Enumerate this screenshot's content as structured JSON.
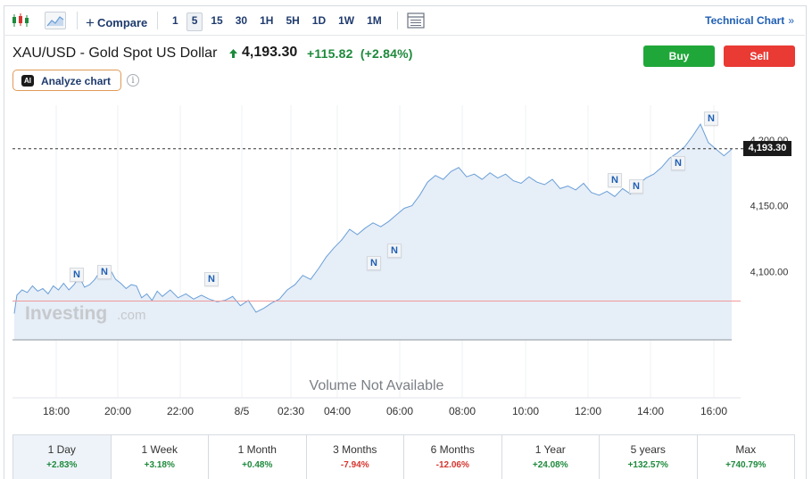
{
  "toolbar": {
    "compare_label": "Compare",
    "intervals": [
      "1",
      "5",
      "15",
      "30",
      "1H",
      "5H",
      "1D",
      "1W",
      "1M"
    ],
    "active_interval": "5",
    "technical_chart_label": "Technical Chart"
  },
  "header": {
    "title": "XAU/USD - Gold Spot US Dollar",
    "price": "4,193.30",
    "change": "+115.82",
    "change_pct": "(+2.84%)",
    "buy_label": "Buy",
    "sell_label": "Sell",
    "analyze_badge": "AI",
    "analyze_label": "Analyze chart",
    "info_glyph": "i"
  },
  "colors": {
    "up": "#1e8a3c",
    "down": "#d6342e",
    "buy": "#20a73a",
    "sell": "#e93a34",
    "line": "#6a9fd8",
    "area": "#e6eef7"
  },
  "chart": {
    "watermark_brand": "Investing",
    "watermark_suffix": ".com",
    "volume_text": "Volume Not Available",
    "current_price_label": "4,193.30",
    "news_marker": "N"
  },
  "chart_data": {
    "type": "area",
    "y_ticks": [
      "4,100.00",
      "4,150.00",
      "4,200.00"
    ],
    "x_ticks": [
      "18:00",
      "20:00",
      "22:00",
      "8/5",
      "02:30",
      "04:00",
      "06:00",
      "08:00",
      "10:00",
      "12:00",
      "14:00",
      "16:00"
    ],
    "ylim": [
      4048,
      4225
    ],
    "previous_close": 4077.5,
    "current": 4193.3,
    "x": [
      0,
      1,
      3,
      5,
      7,
      9,
      11,
      13,
      15,
      17,
      19,
      21,
      23,
      25,
      27,
      29,
      31,
      33,
      35,
      37,
      39,
      41,
      43,
      45,
      47,
      49,
      51,
      53,
      55,
      57,
      60,
      63,
      66,
      69,
      72,
      75,
      78,
      81,
      84,
      87,
      90,
      93,
      96,
      99,
      102,
      105,
      108,
      111,
      114,
      117,
      120,
      123,
      126,
      129,
      132,
      135,
      138,
      141,
      144,
      147,
      150,
      153,
      156,
      159,
      162,
      165,
      168,
      171,
      174,
      177,
      180,
      183,
      186,
      189,
      192,
      195,
      198,
      201,
      204,
      207,
      210,
      213,
      216,
      219,
      222,
      225,
      228,
      231,
      234,
      237,
      240,
      243,
      246,
      249,
      252,
      255,
      258,
      261,
      264,
      267,
      270,
      273,
      276
    ],
    "values": [
      4068,
      4082,
      4086,
      4084,
      4089,
      4085,
      4087,
      4083,
      4089,
      4086,
      4091,
      4086,
      4090,
      4096,
      4088,
      4090,
      4094,
      4100,
      4097,
      4101,
      4094,
      4091,
      4087,
      4090,
      4089,
      4080,
      4083,
      4078,
      4085,
      4081,
      4086,
      4080,
      4083,
      4079,
      4082,
      4079,
      4077,
      4078,
      4081,
      4074,
      4078,
      4069,
      4072,
      4076,
      4079,
      4086,
      4090,
      4097,
      4094,
      4102,
      4111,
      4118,
      4124,
      4132,
      4128,
      4133,
      4137,
      4134,
      4138,
      4143,
      4148,
      4150,
      4158,
      4168,
      4173,
      4170,
      4176,
      4179,
      4172,
      4174,
      4170,
      4175,
      4171,
      4174,
      4169,
      4167,
      4172,
      4168,
      4166,
      4170,
      4163,
      4165,
      4162,
      4167,
      4160,
      4158,
      4161,
      4157,
      4163,
      4159,
      4166,
      4171,
      4174,
      4179,
      4186,
      4190,
      4195,
      4203,
      4212,
      4198,
      4193,
      4188,
      4193
    ]
  },
  "news_markers": [
    {
      "label": "N"
    },
    {
      "label": "N"
    },
    {
      "label": "N"
    },
    {
      "label": "N"
    },
    {
      "label": "N"
    },
    {
      "label": "N"
    },
    {
      "label": "N"
    },
    {
      "label": "N"
    },
    {
      "label": "N"
    }
  ],
  "periods": [
    {
      "label": "1 Day",
      "value": "+2.83%",
      "dir": "pos"
    },
    {
      "label": "1 Week",
      "value": "+3.18%",
      "dir": "pos"
    },
    {
      "label": "1 Month",
      "value": "+0.48%",
      "dir": "pos"
    },
    {
      "label": "3 Months",
      "value": "-7.94%",
      "dir": "neg"
    },
    {
      "label": "6 Months",
      "value": "-12.06%",
      "dir": "neg"
    },
    {
      "label": "1 Year",
      "value": "+24.08%",
      "dir": "pos"
    },
    {
      "label": "5 years",
      "value": "+132.57%",
      "dir": "pos"
    },
    {
      "label": "Max",
      "value": "+740.79%",
      "dir": "pos"
    }
  ]
}
